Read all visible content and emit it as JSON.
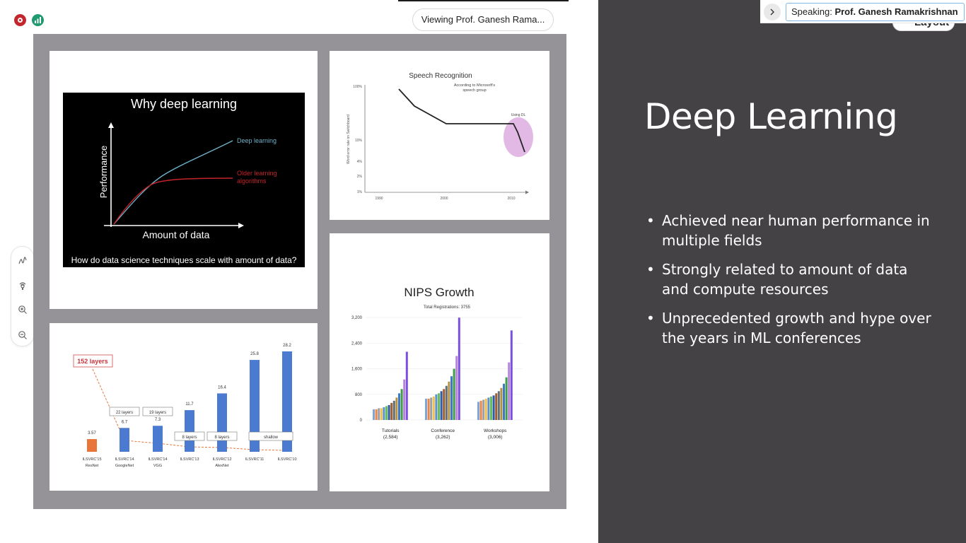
{
  "meeting": {
    "viewing_label": "Viewing Prof. Ganesh Rama...",
    "speaking_prefix": "Speaking:",
    "speaking_name": "Prof. Ganesh Ramakrishnan",
    "layout_label": "Layout"
  },
  "slide": {
    "title": "Deep Learning",
    "bullets": [
      "Achieved near human performance in multiple fields",
      "Strongly related to amount of data and compute resources",
      "Unprecedented growth and hype over the years in ML conferences"
    ]
  },
  "why_dl": {
    "title": "Why deep learning",
    "ylabel": "Performance",
    "xlabel": "Amount of data",
    "series_dl": "Deep learning",
    "series_old": "Older learning algorithms",
    "caption": "How do data science techniques scale with amount of data?",
    "colors": {
      "dl": "#6fb0c9",
      "old": "#c4242a"
    }
  },
  "speech": {
    "title": "Speech Recognition",
    "note_top": "According to Microsoft's speech group",
    "note_dl": "Using DL",
    "ylabel": "Word error rate on Switchboard",
    "y_ticks": [
      "100%",
      "10%",
      "4%",
      "2%",
      "1%"
    ],
    "x_ticks": [
      "1990",
      "2000",
      "2010"
    ]
  },
  "nips": {
    "title": "NIPS Growth",
    "subtitle": "Total Registrations: 3755",
    "y_ticks": [
      "3,200",
      "2,400",
      "1,600",
      "800",
      "0"
    ],
    "groups": [
      {
        "label": "Tutorials",
        "sub": "(2,584)"
      },
      {
        "label": "Conference",
        "sub": "(3,262)"
      },
      {
        "label": "Workshops",
        "sub": "(3,006)"
      }
    ]
  },
  "layers": {
    "highlight": "152 layers",
    "bars": [
      {
        "value": "3.57",
        "label": "ILSVRC'15",
        "sub": "ResNet",
        "layer_tag": ""
      },
      {
        "value": "6.7",
        "label": "ILSVRC'14",
        "sub": "GoogleNet",
        "layer_tag": "22 layers"
      },
      {
        "value": "7.3",
        "label": "ILSVRC'14",
        "sub": "VGG",
        "layer_tag": "19 layers"
      },
      {
        "value": "11.7",
        "label": "ILSVRC'13",
        "sub": "",
        "layer_tag": "8 layers"
      },
      {
        "value": "16.4",
        "label": "ILSVRC'12",
        "sub": "AlexNet",
        "layer_tag": "8 layers"
      },
      {
        "value": "25.8",
        "label": "ILSVRC'11",
        "sub": "",
        "layer_tag": ""
      },
      {
        "value": "28.2",
        "label": "ILSVRC'10",
        "sub": "",
        "layer_tag": ""
      }
    ],
    "shallow_label": "shallow"
  },
  "colors": {
    "slide_bg": "#454246",
    "frame_bg": "#959397",
    "record": "#c4262e",
    "network": "#1f9b6f",
    "bar_blue": "#4b7bd0",
    "bar_orange": "#e8753a"
  }
}
